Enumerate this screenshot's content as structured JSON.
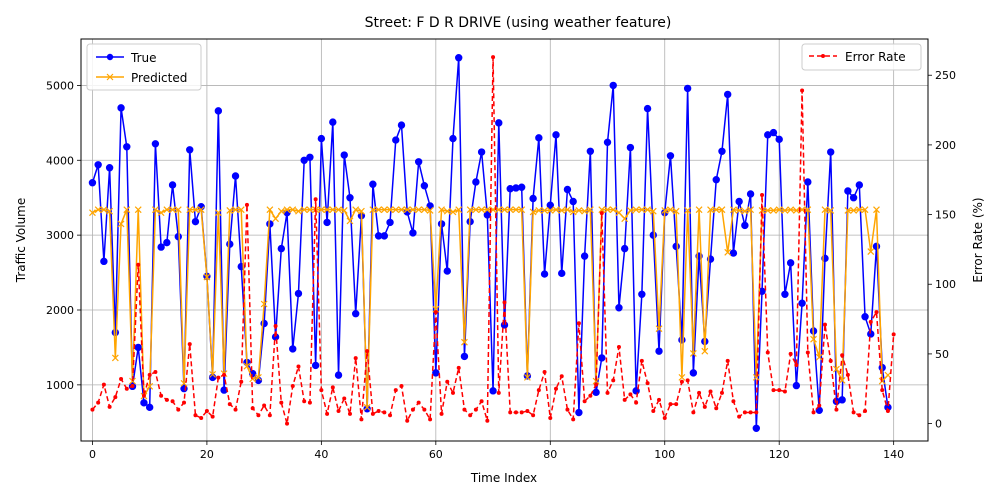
{
  "chart_data": {
    "type": "line",
    "title": "Street: F D R DRIVE (using weather feature)",
    "xlabel": "Time Index",
    "ylabel_left": "Traffic Volume",
    "ylabel_right": "Error Rate (%)",
    "xlim": [
      -2,
      146
    ],
    "ylim_left": [
      250,
      5620
    ],
    "ylim_right": [
      -12.5,
      276
    ],
    "x_ticks": [
      0,
      20,
      40,
      60,
      80,
      100,
      120,
      140
    ],
    "y_ticks_left": [
      1000,
      2000,
      3000,
      4000,
      5000
    ],
    "y_ticks_right": [
      0,
      50,
      100,
      150,
      200,
      250
    ],
    "grid": true,
    "legend_left": "upper left",
    "legend_right": "upper right",
    "colors": {
      "true": "#0000ff",
      "predicted": "#ffa500",
      "error": "#ff0000"
    },
    "series": [
      {
        "name": "True",
        "marker": "circle",
        "values": [
          3700,
          3940,
          2650,
          3900,
          1700,
          4700,
          4180,
          980,
          1500,
          760,
          700,
          4220,
          2840,
          2900,
          3670,
          2980,
          950,
          4140,
          3180,
          3380,
          2450,
          1100,
          4660,
          930,
          2880,
          3790,
          2580,
          1300,
          1150,
          1060,
          1820,
          3150,
          1640,
          2820,
          3300,
          1480,
          2220,
          4000,
          4040,
          1260,
          4290,
          3170,
          4510,
          1130,
          4070,
          3500,
          1950,
          3260,
          680,
          3680,
          2990,
          2990,
          3170,
          4270,
          4470,
          3310,
          3030,
          3980,
          3660,
          3390,
          1160,
          3150,
          2520,
          4290,
          5370,
          1380,
          3180,
          3710,
          4110,
          3270,
          920,
          4500,
          1800,
          3620,
          3630,
          3640,
          1120,
          3490,
          4300,
          2480,
          3400,
          4340,
          2490,
          3610,
          3450,
          630,
          2720,
          4120,
          900,
          1360,
          4240,
          5000,
          2030,
          2820,
          4170,
          920,
          2210,
          4690,
          3000,
          1450,
          3300,
          4060,
          2850,
          1600,
          4960,
          1160,
          2720,
          1580,
          2680,
          3740,
          4120,
          4880,
          2760,
          3450,
          3130,
          3550,
          420,
          2250,
          4340,
          4370,
          4280,
          2210,
          2630,
          990,
          2090,
          3710,
          1720,
          660,
          2690,
          4110,
          780,
          800,
          3590,
          3500,
          3670,
          1910,
          1680,
          2850,
          1230,
          700
        ]
      },
      {
        "name": "Predicted",
        "marker": "x",
        "values": [
          3300,
          3340,
          3340,
          3320,
          1360,
          3150,
          3340,
          1050,
          3340,
          850,
          980,
          3340,
          3300,
          3340,
          3340,
          3340,
          1020,
          3340,
          3340,
          3340,
          2440,
          1140,
          3300,
          1150,
          3330,
          3340,
          3340,
          1250,
          1080,
          1100,
          2080,
          3340,
          3220,
          3320,
          3340,
          3340,
          3320,
          3340,
          3340,
          3340,
          3340,
          3340,
          3340,
          3340,
          3330,
          3190,
          3340,
          3320,
          700,
          3340,
          3340,
          3340,
          3340,
          3340,
          3340,
          3340,
          3340,
          3340,
          3340,
          3330,
          2010,
          3340,
          3320,
          3310,
          3340,
          1570,
          3340,
          3340,
          3340,
          3340,
          3340,
          3340,
          3340,
          3340,
          3340,
          3340,
          1100,
          3310,
          3330,
          3330,
          3330,
          3340,
          3330,
          3340,
          3310,
          3330,
          3320,
          3340,
          1050,
          3340,
          3340,
          3340,
          3300,
          3220,
          3330,
          3340,
          3340,
          3340,
          3320,
          1750,
          3330,
          3340,
          3320,
          1100,
          3330,
          1420,
          3340,
          1450,
          3340,
          3340,
          3340,
          2770,
          3340,
          3330,
          3320,
          3340,
          1100,
          3330,
          3330,
          3330,
          3340,
          3330,
          3340,
          3330,
          3340,
          3340,
          1610,
          1370,
          3340,
          3330,
          1210,
          1060,
          3330,
          3330,
          3340,
          3340,
          2780,
          3340,
          1050,
          1130
        ]
      },
      {
        "name": "Error Rate",
        "marker": "dot",
        "style": "dashed",
        "axis": "right",
        "values": [
          10,
          15,
          28,
          12,
          19,
          32,
          25,
          27,
          114,
          20,
          35,
          37,
          20,
          17,
          16,
          10,
          15,
          57,
          6,
          4,
          9,
          5,
          33,
          35,
          14,
          10,
          30,
          157,
          11,
          6,
          13,
          6,
          70,
          15,
          0,
          27,
          41,
          16,
          15,
          161,
          24,
          7,
          26,
          9,
          18,
          7,
          47,
          3,
          52,
          7,
          9,
          8,
          6,
          24,
          27,
          2,
          10,
          15,
          10,
          3,
          80,
          7,
          30,
          22,
          40,
          10,
          6,
          10,
          16,
          2,
          263,
          22,
          87,
          8,
          8,
          8,
          9,
          6,
          24,
          37,
          4,
          25,
          34,
          10,
          3,
          72,
          16,
          20,
          28,
          151,
          22,
          31,
          55,
          17,
          21,
          15,
          45,
          29,
          9,
          17,
          4,
          14,
          14,
          30,
          31,
          8,
          22,
          12,
          23,
          11,
          22,
          45,
          16,
          5,
          8,
          8,
          8,
          164,
          51,
          24,
          24,
          23,
          50,
          42,
          239,
          51,
          8,
          13,
          71,
          45,
          10,
          49,
          35,
          8,
          6,
          9,
          73,
          80,
          24,
          9,
          64
        ]
      }
    ]
  }
}
